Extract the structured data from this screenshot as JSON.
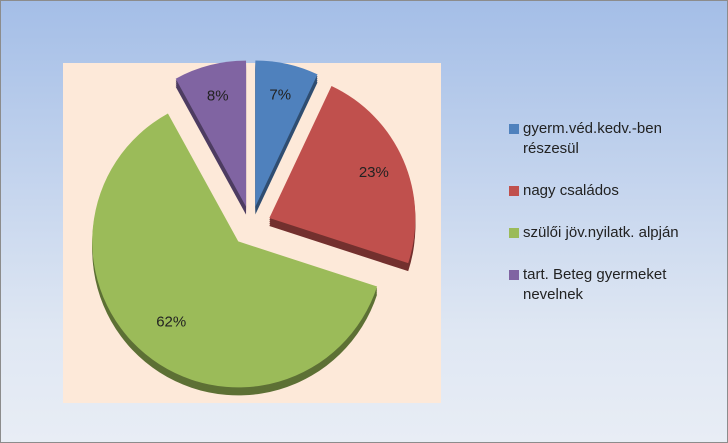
{
  "chart_data": {
    "type": "pie",
    "categories": [
      "gyerm.véd.kedv.-ben részesül",
      "nagy családos",
      "szülői jöv.nyilatk. alpján",
      "tart. Beteg gyermeket nevelnek"
    ],
    "values": [
      7,
      23,
      62,
      8
    ],
    "value_labels": [
      "7%",
      "23%",
      "62%",
      "8%"
    ],
    "colors": [
      "#4f81bd",
      "#c0504d",
      "#9bbb59",
      "#8064a2"
    ],
    "legend": "right"
  }
}
